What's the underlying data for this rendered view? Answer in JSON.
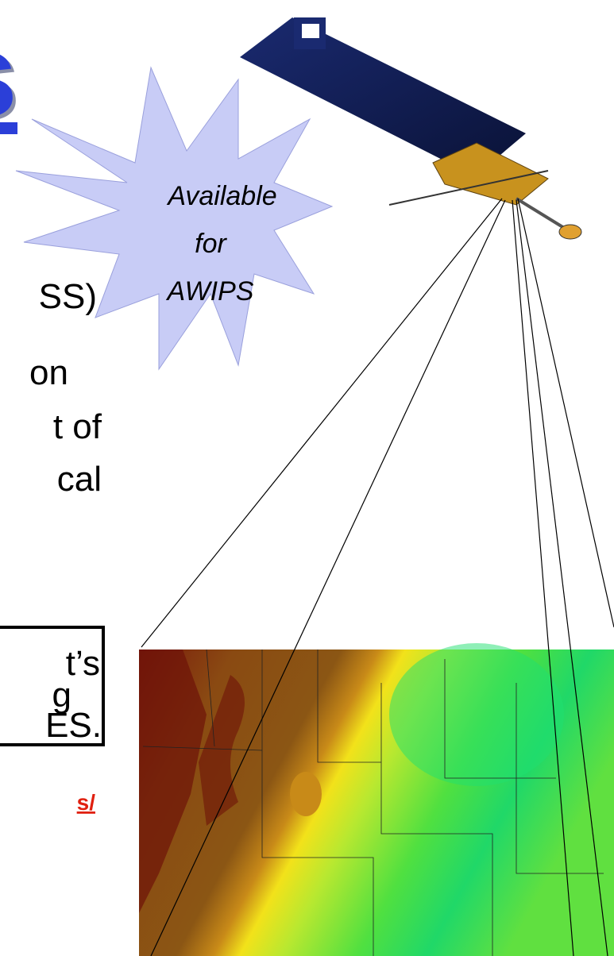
{
  "title_fragment": "s",
  "callout": {
    "lines": [
      "Available",
      "for",
      "AWIPS"
    ]
  },
  "body_fragments": [
    "SS)",
    "on",
    "t of",
    "cal"
  ],
  "box_fragments": [
    "t’s",
    "g",
    "ES."
  ],
  "link_fragment": "s/"
}
